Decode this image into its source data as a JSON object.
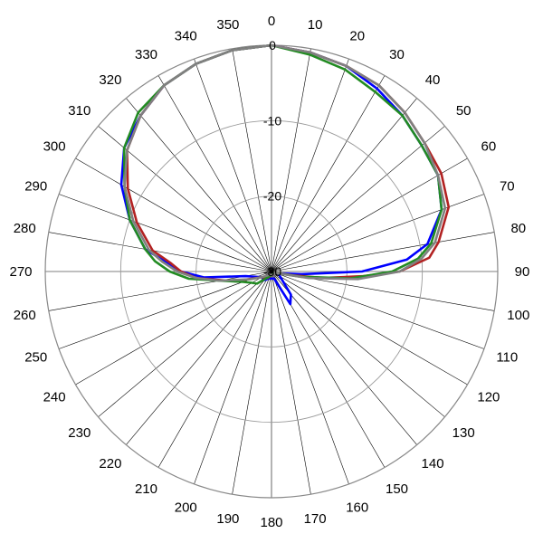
{
  "chart_data": {
    "type": "polar-line",
    "title": "",
    "angle_labels": [
      "0",
      "10",
      "20",
      "30",
      "40",
      "50",
      "60",
      "70",
      "80",
      "90",
      "100",
      "110",
      "120",
      "130",
      "140",
      "150",
      "160",
      "170",
      "180",
      "190",
      "200",
      "210",
      "220",
      "230",
      "240",
      "250",
      "260",
      "270",
      "280",
      "290",
      "300",
      "310",
      "320",
      "330",
      "340",
      "350"
    ],
    "radial_ticks": [
      0,
      -10,
      -20,
      -30
    ],
    "radial_tick_labels": [
      "0",
      "-10",
      "-20",
      "-30"
    ],
    "radial_range": [
      -30,
      0
    ],
    "radial_grid": true,
    "angular_grid": true,
    "legend": "none",
    "series": [
      {
        "color": "#0000ff",
        "points": [
          [
            0,
            0
          ],
          [
            10,
            -0.5
          ],
          [
            20,
            -1
          ],
          [
            30,
            -2
          ],
          [
            40,
            -3
          ],
          [
            50,
            -4
          ],
          [
            60,
            -4.5
          ],
          [
            70,
            -6
          ],
          [
            80,
            -9
          ],
          [
            85,
            -12
          ],
          [
            90,
            -18
          ],
          [
            95,
            -26
          ],
          [
            100,
            -28.5
          ],
          [
            110,
            -29
          ],
          [
            140,
            -26
          ],
          [
            150,
            -25
          ],
          [
            160,
            -29
          ],
          [
            200,
            -29
          ],
          [
            220,
            -28.5
          ],
          [
            240,
            -28.5
          ],
          [
            260,
            -26.5
          ],
          [
            265,
            -21
          ],
          [
            270,
            -18
          ],
          [
            275,
            -16
          ],
          [
            280,
            -13
          ],
          [
            290,
            -10
          ],
          [
            300,
            -7
          ],
          [
            310,
            -4.5
          ],
          [
            320,
            -3
          ],
          [
            330,
            -1.5
          ],
          [
            340,
            -0.7
          ],
          [
            350,
            -0.2
          ],
          [
            360,
            0
          ]
        ]
      },
      {
        "color": "#b22222",
        "points": [
          [
            0,
            0
          ],
          [
            10,
            -0.5
          ],
          [
            20,
            -1
          ],
          [
            30,
            -1.5
          ],
          [
            40,
            -2.5
          ],
          [
            50,
            -3.5
          ],
          [
            60,
            -4
          ],
          [
            70,
            -5
          ],
          [
            80,
            -7.5
          ],
          [
            85,
            -9
          ],
          [
            90,
            -13
          ],
          [
            93,
            -18
          ],
          [
            97,
            -23
          ],
          [
            100,
            -27
          ],
          [
            110,
            -29.5
          ],
          [
            150,
            -29.5
          ],
          [
            180,
            -29.5
          ],
          [
            210,
            -29
          ],
          [
            240,
            -28.5
          ],
          [
            255,
            -25
          ],
          [
            265,
            -20
          ],
          [
            270,
            -18
          ],
          [
            275,
            -16.5
          ],
          [
            280,
            -14
          ],
          [
            290,
            -11
          ],
          [
            300,
            -8
          ],
          [
            310,
            -5
          ],
          [
            320,
            -3
          ],
          [
            330,
            -1.5
          ],
          [
            340,
            -0.7
          ],
          [
            350,
            -0.2
          ],
          [
            360,
            0
          ]
        ]
      },
      {
        "color": "#228b22",
        "points": [
          [
            0,
            0
          ],
          [
            10,
            -0.8
          ],
          [
            20,
            -1.5
          ],
          [
            30,
            -2.5
          ],
          [
            40,
            -3
          ],
          [
            50,
            -4
          ],
          [
            60,
            -4.5
          ],
          [
            70,
            -6
          ],
          [
            80,
            -8.5
          ],
          [
            85,
            -10.5
          ],
          [
            90,
            -14
          ],
          [
            95,
            -19.5
          ],
          [
            100,
            -26
          ],
          [
            110,
            -29.5
          ],
          [
            180,
            -29.5
          ],
          [
            230,
            -27.5
          ],
          [
            240,
            -27
          ],
          [
            250,
            -26
          ],
          [
            260,
            -23
          ],
          [
            265,
            -19
          ],
          [
            270,
            -16.5
          ],
          [
            275,
            -14.5
          ],
          [
            280,
            -13
          ],
          [
            290,
            -10
          ],
          [
            300,
            -7.5
          ],
          [
            310,
            -4.5
          ],
          [
            320,
            -2.5
          ],
          [
            330,
            -1.5
          ],
          [
            340,
            -0.7
          ],
          [
            350,
            -0.2
          ],
          [
            360,
            0
          ]
        ]
      },
      {
        "color": "#808080",
        "points": [
          [
            0,
            0
          ],
          [
            10,
            -0.5
          ],
          [
            20,
            -1
          ],
          [
            30,
            -1.5
          ],
          [
            40,
            -2.5
          ],
          [
            50,
            -3.5
          ],
          [
            60,
            -4.5
          ],
          [
            70,
            -5.5
          ],
          [
            80,
            -8
          ],
          [
            85,
            -10
          ],
          [
            90,
            -13
          ],
          [
            95,
            -18.5
          ],
          [
            100,
            -25
          ],
          [
            110,
            -29.5
          ],
          [
            150,
            -29.5
          ],
          [
            180,
            -29.5
          ],
          [
            210,
            -29.5
          ],
          [
            240,
            -28.5
          ],
          [
            250,
            -27
          ],
          [
            260,
            -23
          ],
          [
            265,
            -20
          ],
          [
            270,
            -17.5
          ],
          [
            275,
            -15.5
          ],
          [
            280,
            -13.5
          ],
          [
            290,
            -10.5
          ],
          [
            300,
            -7.5
          ],
          [
            310,
            -5
          ],
          [
            320,
            -3
          ],
          [
            330,
            -1.5
          ],
          [
            340,
            -0.7
          ],
          [
            350,
            -0.2
          ],
          [
            360,
            0
          ]
        ]
      }
    ]
  }
}
